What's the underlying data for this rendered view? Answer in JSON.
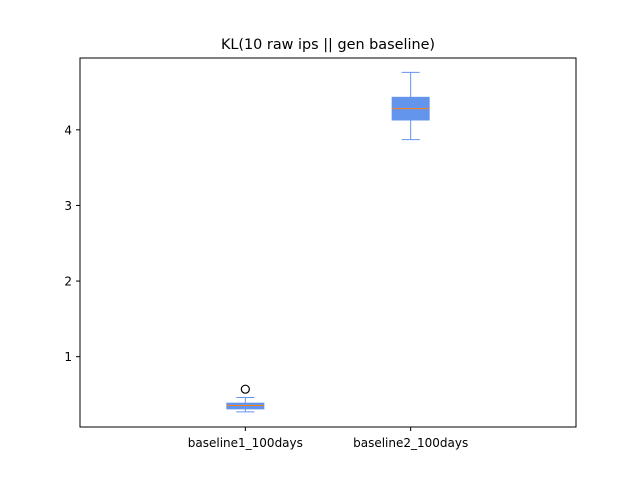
{
  "chart_data": {
    "type": "box",
    "title": "KL(10 raw ips || gen baseline)",
    "xlabel": "",
    "ylabel": "",
    "categories": [
      "baseline1_100days",
      "baseline2_100days"
    ],
    "boxes": [
      {
        "category": "baseline1_100days",
        "whisker_low": 0.27,
        "q1": 0.31,
        "median": 0.355,
        "q3": 0.385,
        "whisker_high": 0.46,
        "outliers": [
          0.57
        ]
      },
      {
        "category": "baseline2_100days",
        "whisker_low": 3.87,
        "q1": 4.13,
        "median": 4.28,
        "q3": 4.43,
        "whisker_high": 4.76,
        "outliers": []
      }
    ],
    "ylim": [
      0.07,
      4.95
    ],
    "yticks": [
      1,
      2,
      3,
      4
    ],
    "ytick_labels": [
      "1",
      "2",
      "3",
      "4"
    ],
    "grid": false,
    "colors": {
      "box_fill": "#6495ed",
      "box_edge": "#6495ed",
      "median": "#ff7f0e",
      "outlier": "#000000",
      "axes": "#000000"
    }
  }
}
